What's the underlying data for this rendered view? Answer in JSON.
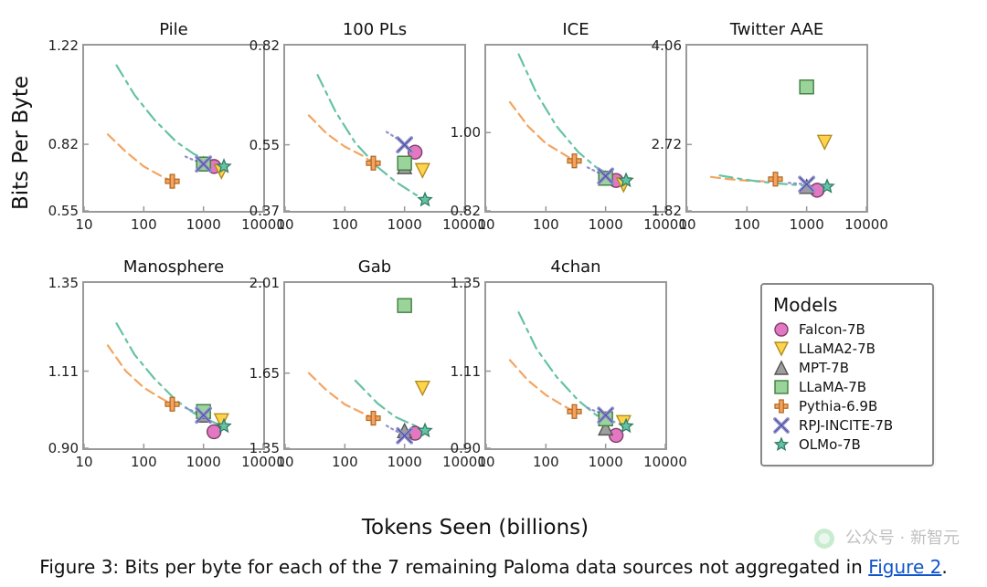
{
  "axes": {
    "xlabel": "Tokens Seen (billions)",
    "ylabel": "Bits Per Byte",
    "x_type": "log",
    "xlim": [
      10,
      10000
    ],
    "xticks": [
      10,
      100,
      1000,
      10000
    ],
    "xtick_labels": [
      "10",
      "100",
      "1000",
      "10000"
    ],
    "tick_fontsize": 15,
    "title_fontsize": 18,
    "border_color": "#999999",
    "background_color": "#ffffff"
  },
  "models": {
    "falcon": {
      "label": "Falcon-7B",
      "marker": "circle",
      "color": "#e377c2",
      "edge": "#7b3f67",
      "tokens": 1500
    },
    "llama2": {
      "label": "LLaMA2-7B",
      "marker": "triangle_down",
      "color": "#ffd34d",
      "edge": "#b28c1f",
      "tokens": 2000
    },
    "mpt": {
      "label": "MPT-7B",
      "marker": "triangle_up",
      "color": "#9e9e9e",
      "edge": "#555555",
      "tokens": 1000
    },
    "llama": {
      "label": "LLaMA-7B",
      "marker": "square",
      "color": "#9bd49b",
      "edge": "#3f7d3f",
      "tokens": 1000
    },
    "pythia": {
      "label": "Pythia-6.9B",
      "marker": "plus",
      "color": "#f4a460",
      "edge": "#b0651f",
      "tokens": 300
    },
    "rpj": {
      "label": "RPJ-INCITE-7B",
      "marker": "x",
      "color": "#9090d0",
      "edge": "#4a4a95",
      "tokens": 1000
    },
    "olmo": {
      "label": "OLMo-7B",
      "marker": "star",
      "color": "#66c2a5",
      "edge": "#2f7d63",
      "tokens": 2200
    }
  },
  "curves": {
    "pythia_sweep": {
      "points_t": [
        25,
        50,
        100,
        200,
        300
      ],
      "color": "#f4a460",
      "dash": "10,6",
      "width": 2.2
    },
    "olmo_sweep": {
      "points_t": [
        35,
        70,
        150,
        350,
        700,
        1500,
        2200
      ],
      "color": "#66c2a5",
      "dash": "14,6,4,6",
      "width": 2.2
    },
    "rpj_sweep": {
      "points_t": [
        500,
        700,
        900,
        1000
      ],
      "color": "#9090d0",
      "dash": "2,4",
      "width": 2.2
    }
  },
  "panels": [
    {
      "title": "Pile",
      "ylim": [
        0.55,
        1.22
      ],
      "yticks": [
        0.55,
        0.82
      ],
      "ytick_labels": [
        "0.55",
        "0.82"
      ],
      "ytick_top": "1.22",
      "points": {
        "falcon": 0.73,
        "llama2": 0.71,
        "mpt": 0.74,
        "llama": 0.74,
        "pythia": 0.67,
        "rpj": 0.74,
        "olmo": 0.73
      },
      "curves": {
        "pythia_sweep": [
          0.86,
          0.79,
          0.73,
          0.69,
          0.67
        ],
        "olmo_sweep": [
          1.14,
          1.02,
          0.92,
          0.83,
          0.78,
          0.745,
          0.73
        ],
        "rpj_sweep": [
          0.77,
          0.755,
          0.745,
          0.74
        ]
      }
    },
    {
      "title": "100 PLs",
      "ylim": [
        0.37,
        0.82
      ],
      "yticks": [
        0.37,
        0.55
      ],
      "ytick_labels": [
        "0.37",
        "0.55"
      ],
      "ytick_top": "0.82",
      "points": {
        "falcon": 0.53,
        "llama2": 0.48,
        "mpt": 0.49,
        "llama": 0.5,
        "pythia": 0.5,
        "rpj": 0.55,
        "olmo": 0.4
      },
      "curves": {
        "pythia_sweep": [
          0.63,
          0.58,
          0.545,
          0.52,
          0.5
        ],
        "olmo_sweep": [
          0.74,
          0.64,
          0.555,
          0.49,
          0.45,
          0.415,
          0.4
        ],
        "rpj_sweep": [
          0.585,
          0.57,
          0.558,
          0.55
        ]
      }
    },
    {
      "title": "ICE",
      "ylim": [
        0.82,
        1.2
      ],
      "yticks": [
        0.82,
        1.0
      ],
      "ytick_labels": [
        "0.82",
        "1.00"
      ],
      "ytick_top": "",
      "points": {
        "falcon": 0.89,
        "llama2": 0.88,
        "mpt": 0.895,
        "llama": 0.895,
        "pythia": 0.935,
        "rpj": 0.9,
        "olmo": 0.89
      },
      "curves": {
        "pythia_sweep": [
          1.07,
          1.015,
          0.975,
          0.95,
          0.935
        ],
        "olmo_sweep": [
          1.18,
          1.09,
          1.015,
          0.955,
          0.92,
          0.895,
          0.89
        ],
        "rpj_sweep": [
          0.92,
          0.91,
          0.903,
          0.9
        ]
      }
    },
    {
      "title": "Twitter AAE",
      "ylim": [
        1.82,
        4.06
      ],
      "yticks": [
        1.82,
        2.72
      ],
      "ytick_labels": [
        "1.82",
        "2.72"
      ],
      "ytick_top": "4.06",
      "points": {
        "falcon": 2.1,
        "llama2": 2.75,
        "mpt": 2.15,
        "llama": 3.5,
        "pythia": 2.25,
        "rpj": 2.18,
        "olmo": 2.15
      },
      "curves": {
        "pythia_sweep": [
          2.28,
          2.25,
          2.23,
          2.22,
          2.25
        ],
        "olmo_sweep": [
          2.3,
          2.26,
          2.22,
          2.19,
          2.17,
          2.155,
          2.15
        ],
        "rpj_sweep": [
          2.2,
          2.19,
          2.185,
          2.18
        ]
      }
    },
    {
      "title": "Manosphere",
      "ylim": [
        0.9,
        1.35
      ],
      "yticks": [
        0.9,
        1.11
      ],
      "ytick_labels": [
        "0.90",
        "1.11"
      ],
      "ytick_top": "1.35",
      "points": {
        "falcon": 0.945,
        "llama2": 0.975,
        "mpt": 0.99,
        "llama": 1.0,
        "pythia": 1.02,
        "rpj": 0.99,
        "olmo": 0.96
      },
      "curves": {
        "pythia_sweep": [
          1.18,
          1.11,
          1.065,
          1.035,
          1.02
        ],
        "olmo_sweep": [
          1.24,
          1.155,
          1.09,
          1.03,
          0.995,
          0.97,
          0.96
        ],
        "rpj_sweep": [
          1.01,
          1.0,
          0.994,
          0.99
        ]
      }
    },
    {
      "title": "Gab",
      "ylim": [
        1.35,
        2.01
      ],
      "yticks": [
        1.35,
        1.65
      ],
      "ytick_labels": [
        "1.35",
        "1.65"
      ],
      "ytick_top": "2.01",
      "points": {
        "falcon": 1.41,
        "llama2": 1.59,
        "mpt": 1.42,
        "llama": 1.92,
        "pythia": 1.47,
        "rpj": 1.4,
        "olmo": 1.42
      },
      "curves": {
        "pythia_sweep": [
          1.65,
          1.58,
          1.525,
          1.49,
          1.47
        ],
        "olmo_sweep": [
          null,
          null,
          1.62,
          1.53,
          1.475,
          1.44,
          1.42
        ],
        "rpj_sweep": [
          1.44,
          1.42,
          1.408,
          1.4
        ]
      }
    },
    {
      "title": "4chan",
      "ylim": [
        0.9,
        1.35
      ],
      "yticks": [
        0.9,
        1.11
      ],
      "ytick_labels": [
        "0.90",
        "1.11"
      ],
      "ytick_top": "1.35",
      "points": {
        "falcon": 0.935,
        "llama2": 0.97,
        "mpt": 0.955,
        "llama": 0.98,
        "pythia": 1.0,
        "rpj": 0.99,
        "olmo": 0.96
      },
      "curves": {
        "pythia_sweep": [
          1.14,
          1.085,
          1.045,
          1.015,
          1.0
        ],
        "olmo_sweep": [
          1.27,
          1.17,
          1.095,
          1.03,
          0.99,
          0.97,
          0.96
        ],
        "rpj_sweep": [
          1.01,
          1.0,
          0.994,
          0.99
        ]
      }
    }
  ],
  "legend": {
    "title": "Models",
    "order": [
      "falcon",
      "llama2",
      "mpt",
      "llama",
      "pythia",
      "rpj",
      "olmo"
    ]
  },
  "marker_size": 15,
  "caption": {
    "prefix": "Figure 3: Bits per byte for each of the 7 remaining Paloma data sources not aggregated in ",
    "link_text": "Figure 2",
    "suffix": "."
  },
  "watermark": "公众号 · 新智元"
}
